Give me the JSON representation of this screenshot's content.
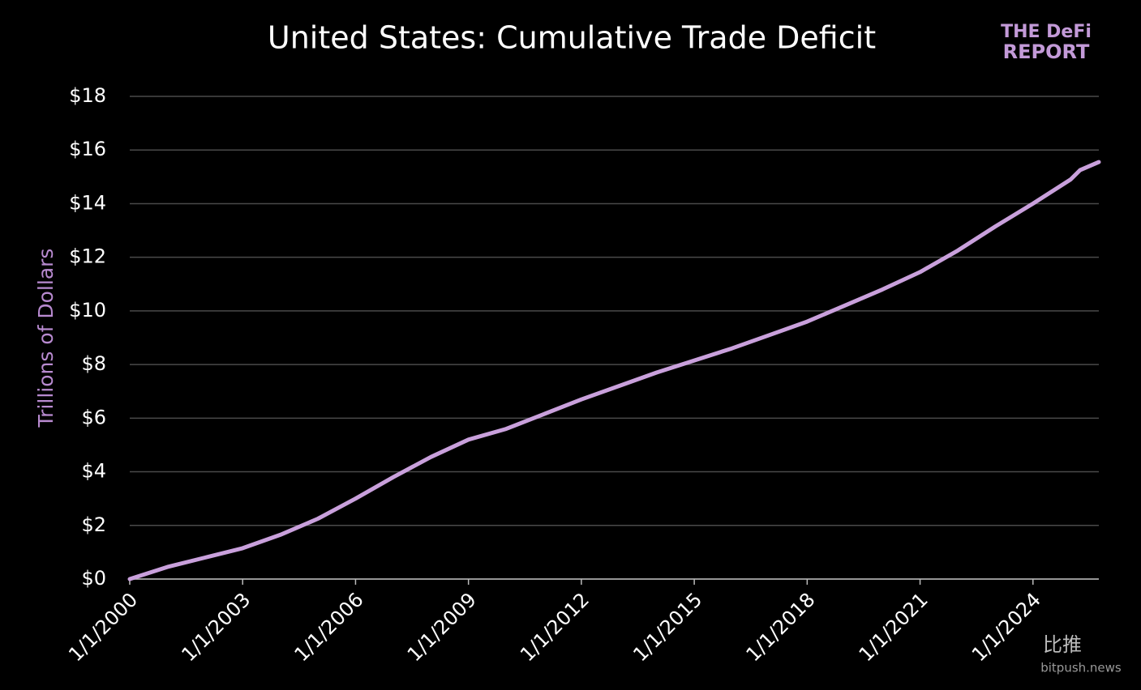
{
  "chart_data": {
    "type": "line",
    "title": "United States: Cumulative Trade Deficit",
    "ylabel": "Trillions of Dollars",
    "x": [
      "1/1/2000",
      "1/1/2001",
      "1/1/2002",
      "1/1/2003",
      "1/1/2004",
      "1/1/2005",
      "1/1/2006",
      "1/1/2007",
      "1/1/2008",
      "1/1/2009",
      "1/1/2010",
      "1/1/2011",
      "1/1/2012",
      "1/1/2013",
      "1/1/2014",
      "1/1/2015",
      "1/1/2016",
      "1/1/2017",
      "1/1/2018",
      "1/1/2019",
      "1/1/2020",
      "1/1/2021",
      "1/1/2022",
      "1/1/2023",
      "1/1/2024",
      "1/1/2025",
      "4/1/2025",
      "10/1/2025"
    ],
    "values": [
      0,
      0.45,
      0.8,
      1.15,
      1.65,
      2.25,
      3.0,
      3.8,
      4.55,
      5.2,
      5.6,
      6.15,
      6.7,
      7.2,
      7.7,
      8.15,
      8.6,
      9.1,
      9.6,
      10.2,
      10.8,
      11.45,
      12.25,
      13.15,
      14.0,
      14.9,
      15.25,
      15.55
    ],
    "color": "#c9a0dc",
    "xlim": [
      "1/1/2000",
      "10/1/2025"
    ],
    "xticks": [
      "1/1/2000",
      "1/1/2003",
      "1/1/2006",
      "1/1/2009",
      "1/1/2012",
      "1/1/2015",
      "1/1/2018",
      "1/1/2021",
      "1/1/2024"
    ],
    "ylim": [
      0,
      18
    ],
    "yticks": [
      {
        "value": 0,
        "label": "$0"
      },
      {
        "value": 2,
        "label": "$2"
      },
      {
        "value": 4,
        "label": "$4"
      },
      {
        "value": 6,
        "label": "$6"
      },
      {
        "value": 8,
        "label": "$8"
      },
      {
        "value": 10,
        "label": "$10"
      },
      {
        "value": 12,
        "label": "$12"
      },
      {
        "value": 14,
        "label": "$14"
      },
      {
        "value": 16,
        "label": "$16"
      },
      {
        "value": 18,
        "label": "$18"
      }
    ],
    "grid": true
  },
  "logo": {
    "line1": "THE DeFi",
    "line2": "REPORT"
  },
  "watermark": {
    "name": "比推",
    "site": "bitpush.news"
  }
}
